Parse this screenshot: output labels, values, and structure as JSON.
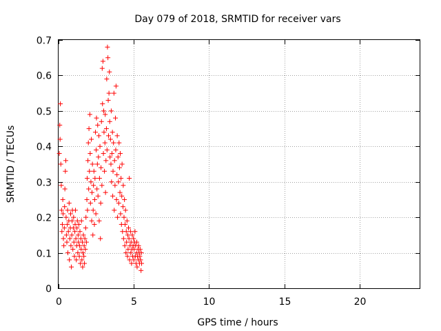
{
  "chart_data": {
    "type": "scatter",
    "title": "Day 079 of 2018, SRMTID for receiver vars",
    "xlabel": "GPS time / hours",
    "ylabel": "SRMTID / TECUs",
    "xlim": [
      0,
      24
    ],
    "ylim": [
      0,
      0.7
    ],
    "xticks": [
      0,
      5,
      10,
      15,
      20
    ],
    "xtick_labels": [
      "0",
      "5",
      "10",
      "15",
      "20"
    ],
    "yticks": [
      0,
      0.1,
      0.2,
      0.3,
      0.4,
      0.5,
      0.6,
      0.7
    ],
    "ytick_labels": [
      "0",
      "0.1",
      "0.2",
      "0.3",
      "0.4",
      "0.5",
      "0.6",
      "0.7"
    ],
    "grid": true,
    "marker": "+",
    "series": [
      {
        "name": "SRMTID",
        "color": "#ff0000",
        "points": [
          [
            0.05,
            0.38
          ],
          [
            0.08,
            0.46
          ],
          [
            0.1,
            0.42
          ],
          [
            0.12,
            0.52
          ],
          [
            0.15,
            0.35
          ],
          [
            0.18,
            0.29
          ],
          [
            0.2,
            0.22
          ],
          [
            0.22,
            0.16
          ],
          [
            0.25,
            0.18
          ],
          [
            0.28,
            0.25
          ],
          [
            0.3,
            0.21
          ],
          [
            0.32,
            0.14
          ],
          [
            0.35,
            0.12
          ],
          [
            0.38,
            0.17
          ],
          [
            0.4,
            0.23
          ],
          [
            0.42,
            0.28
          ],
          [
            0.45,
            0.33
          ],
          [
            0.48,
            0.36
          ],
          [
            0.5,
            0.2
          ],
          [
            0.52,
            0.15
          ],
          [
            0.55,
            0.13
          ],
          [
            0.58,
            0.18
          ],
          [
            0.6,
            0.22
          ],
          [
            0.62,
            0.1
          ],
          [
            0.65,
            0.16
          ],
          [
            0.68,
            0.19
          ],
          [
            0.7,
            0.24
          ],
          [
            0.72,
            0.08
          ],
          [
            0.75,
            0.14
          ],
          [
            0.78,
            0.17
          ],
          [
            0.8,
            0.21
          ],
          [
            0.82,
            0.12
          ],
          [
            0.85,
            0.06
          ],
          [
            0.88,
            0.15
          ],
          [
            0.9,
            0.19
          ],
          [
            0.92,
            0.22
          ],
          [
            0.95,
            0.11
          ],
          [
            0.98,
            0.17
          ],
          [
            1.0,
            0.2
          ],
          [
            1.02,
            0.13
          ],
          [
            1.05,
            0.09
          ],
          [
            1.08,
            0.16
          ],
          [
            1.1,
            0.18
          ],
          [
            1.12,
            0.22
          ],
          [
            1.15,
            0.14
          ],
          [
            1.18,
            0.08
          ],
          [
            1.2,
            0.12
          ],
          [
            1.22,
            0.17
          ],
          [
            1.25,
            0.19
          ],
          [
            1.28,
            0.1
          ],
          [
            1.3,
            0.15
          ],
          [
            1.32,
            0.13
          ],
          [
            1.35,
            0.18
          ],
          [
            1.38,
            0.09
          ],
          [
            1.4,
            0.12
          ],
          [
            1.42,
            0.16
          ],
          [
            1.45,
            0.07
          ],
          [
            1.48,
            0.14
          ],
          [
            1.5,
            0.11
          ],
          [
            1.52,
            0.19
          ],
          [
            1.55,
            0.08
          ],
          [
            1.58,
            0.13
          ],
          [
            1.6,
            0.06
          ],
          [
            1.62,
            0.1
          ],
          [
            1.65,
            0.15
          ],
          [
            1.68,
            0.09
          ],
          [
            1.7,
            0.12
          ],
          [
            1.72,
            0.07
          ],
          [
            1.75,
            0.14
          ],
          [
            1.78,
            0.11
          ],
          [
            1.8,
            0.17
          ],
          [
            1.82,
            0.2
          ],
          [
            1.85,
            0.13
          ],
          [
            1.88,
            0.25
          ],
          [
            1.9,
            0.31
          ],
          [
            1.92,
            0.22
          ],
          [
            1.95,
            0.36
          ],
          [
            1.98,
            0.41
          ],
          [
            2.0,
            0.28
          ],
          [
            2.02,
            0.45
          ],
          [
            2.05,
            0.33
          ],
          [
            2.08,
            0.49
          ],
          [
            2.1,
            0.38
          ],
          [
            2.12,
            0.24
          ],
          [
            2.15,
            0.3
          ],
          [
            2.18,
            0.42
          ],
          [
            2.2,
            0.19
          ],
          [
            2.22,
            0.27
          ],
          [
            2.25,
            0.35
          ],
          [
            2.28,
            0.15
          ],
          [
            2.3,
            0.22
          ],
          [
            2.32,
            0.29
          ],
          [
            2.35,
            0.33
          ],
          [
            2.38,
            0.18
          ],
          [
            2.4,
            0.25
          ],
          [
            2.42,
            0.31
          ],
          [
            2.45,
            0.44
          ],
          [
            2.48,
            0.21
          ],
          [
            2.5,
            0.39
          ],
          [
            2.52,
            0.48
          ],
          [
            2.55,
            0.28
          ],
          [
            2.58,
            0.35
          ],
          [
            2.6,
            0.46
          ],
          [
            2.62,
            0.26
          ],
          [
            2.65,
            0.37
          ],
          [
            2.68,
            0.43
          ],
          [
            2.7,
            0.19
          ],
          [
            2.72,
            0.31
          ],
          [
            2.75,
            0.4
          ],
          [
            2.78,
            0.14
          ],
          [
            2.8,
            0.24
          ],
          [
            2.82,
            0.34
          ],
          [
            2.85,
            0.47
          ],
          [
            2.88,
            0.29
          ],
          [
            2.9,
            0.62
          ],
          [
            2.92,
            0.52
          ],
          [
            2.95,
            0.64
          ],
          [
            2.98,
            0.38
          ],
          [
            3.0,
            0.5
          ],
          [
            3.02,
            0.44
          ],
          [
            3.05,
            0.33
          ],
          [
            3.08,
            0.41
          ],
          [
            3.1,
            0.49
          ],
          [
            3.12,
            0.27
          ],
          [
            3.15,
            0.36
          ],
          [
            3.18,
            0.45
          ],
          [
            3.2,
            0.59
          ],
          [
            3.22,
            0.39
          ],
          [
            3.25,
            0.68
          ],
          [
            3.28,
            0.65
          ],
          [
            3.3,
            0.53
          ],
          [
            3.32,
            0.43
          ],
          [
            3.35,
            0.55
          ],
          [
            3.38,
            0.61
          ],
          [
            3.4,
            0.47
          ],
          [
            3.42,
            0.37
          ],
          [
            3.45,
            0.42
          ],
          [
            3.48,
            0.35
          ],
          [
            3.5,
            0.5
          ],
          [
            3.52,
            0.3
          ],
          [
            3.55,
            0.38
          ],
          [
            3.58,
            0.44
          ],
          [
            3.6,
            0.26
          ],
          [
            3.62,
            0.33
          ],
          [
            3.65,
            0.41
          ],
          [
            3.68,
            0.55
          ],
          [
            3.7,
            0.22
          ],
          [
            3.72,
            0.36
          ],
          [
            3.75,
            0.29
          ],
          [
            3.78,
            0.48
          ],
          [
            3.8,
            0.39
          ],
          [
            3.82,
            0.57
          ],
          [
            3.85,
            0.25
          ],
          [
            3.88,
            0.32
          ],
          [
            3.9,
            0.43
          ],
          [
            3.92,
            0.2
          ],
          [
            3.95,
            0.37
          ],
          [
            3.98,
            0.3
          ],
          [
            4.0,
            0.24
          ],
          [
            4.02,
            0.41
          ],
          [
            4.05,
            0.34
          ],
          [
            4.08,
            0.27
          ],
          [
            4.1,
            0.38
          ],
          [
            4.12,
            0.21
          ],
          [
            4.15,
            0.31
          ],
          [
            4.18,
            0.18
          ],
          [
            4.2,
            0.26
          ],
          [
            4.22,
            0.35
          ],
          [
            4.25,
            0.16
          ],
          [
            4.28,
            0.23
          ],
          [
            4.3,
            0.29
          ],
          [
            4.32,
            0.14
          ],
          [
            4.35,
            0.2
          ],
          [
            4.38,
            0.25
          ],
          [
            4.4,
            0.12
          ],
          [
            4.42,
            0.18
          ],
          [
            4.45,
            0.22
          ],
          [
            4.48,
            0.1
          ],
          [
            4.5,
            0.16
          ],
          [
            4.52,
            0.13
          ],
          [
            4.55,
            0.19
          ],
          [
            4.58,
            0.09
          ],
          [
            4.6,
            0.15
          ],
          [
            4.62,
            0.11
          ],
          [
            4.65,
            0.17
          ],
          [
            4.68,
            0.14
          ],
          [
            4.7,
            0.31
          ],
          [
            4.72,
            0.08
          ],
          [
            4.75,
            0.12
          ],
          [
            4.78,
            0.16
          ],
          [
            4.8,
            0.1
          ],
          [
            4.82,
            0.13
          ],
          [
            4.85,
            0.07
          ],
          [
            4.88,
            0.11
          ],
          [
            4.9,
            0.15
          ],
          [
            4.92,
            0.09
          ],
          [
            4.95,
            0.12
          ],
          [
            4.98,
            0.14
          ],
          [
            5.0,
            0.08
          ],
          [
            5.02,
            0.11
          ],
          [
            5.05,
            0.13
          ],
          [
            5.08,
            0.16
          ],
          [
            5.1,
            0.09
          ],
          [
            5.12,
            0.12
          ],
          [
            5.15,
            0.07
          ],
          [
            5.18,
            0.1
          ],
          [
            5.2,
            0.13
          ],
          [
            5.22,
            0.06
          ],
          [
            5.25,
            0.09
          ],
          [
            5.28,
            0.11
          ],
          [
            5.3,
            0.08
          ],
          [
            5.32,
            0.12
          ],
          [
            5.35,
            0.1
          ],
          [
            5.38,
            0.07
          ],
          [
            5.4,
            0.09
          ],
          [
            5.42,
            0.11
          ],
          [
            5.45,
            0.08
          ],
          [
            5.48,
            0.05
          ],
          [
            5.5,
            0.1
          ],
          [
            5.52,
            0.07
          ]
        ]
      }
    ]
  }
}
